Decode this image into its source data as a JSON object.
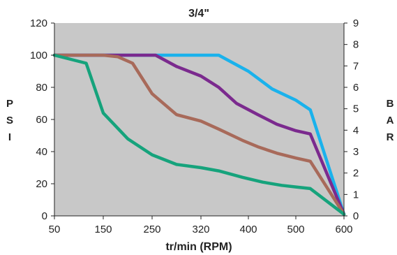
{
  "chart_data": {
    "type": "line",
    "title": "3/4\"",
    "xlabel": "tr/min (RPM)",
    "ylabel_left": "PSI",
    "ylabel_right": "BAR",
    "x_ticks": [
      "50",
      "150",
      "250",
      "320",
      "400",
      "500",
      "600"
    ],
    "y_left_ticks": [
      "0",
      "20",
      "40",
      "60",
      "80",
      "100",
      "120"
    ],
    "y_right_ticks": [
      "0",
      "1",
      "2",
      "3",
      "4",
      "5",
      "6",
      "7",
      "8",
      "9"
    ],
    "ylim_left": [
      0,
      120
    ],
    "ylim_right": [
      0,
      9
    ],
    "grid": false,
    "plot_background": "#c8c8c8",
    "series": [
      {
        "color": "#1ab2ec",
        "points": [
          [
            50,
            100
          ],
          [
            100,
            100
          ],
          [
            150,
            100
          ],
          [
            200,
            100
          ],
          [
            250,
            100
          ],
          [
            300,
            100
          ],
          [
            350,
            100
          ],
          [
            400,
            90
          ],
          [
            450,
            79
          ],
          [
            500,
            72
          ],
          [
            530,
            66
          ],
          [
            600,
            1
          ]
        ]
      },
      {
        "color": "#7b2a8e",
        "points": [
          [
            50,
            100
          ],
          [
            150,
            100
          ],
          [
            200,
            100
          ],
          [
            255,
            100
          ],
          [
            285,
            93
          ],
          [
            320,
            87
          ],
          [
            350,
            80
          ],
          [
            380,
            70
          ],
          [
            420,
            63
          ],
          [
            460,
            57
          ],
          [
            500,
            53
          ],
          [
            530,
            51
          ],
          [
            600,
            1
          ]
        ]
      },
      {
        "color": "#a86a5a",
        "points": [
          [
            50,
            100
          ],
          [
            150,
            100
          ],
          [
            180,
            99
          ],
          [
            210,
            95
          ],
          [
            250,
            76
          ],
          [
            285,
            63
          ],
          [
            320,
            59
          ],
          [
            350,
            54
          ],
          [
            390,
            47
          ],
          [
            420,
            43
          ],
          [
            460,
            39
          ],
          [
            500,
            36
          ],
          [
            530,
            34
          ],
          [
            600,
            1
          ]
        ]
      },
      {
        "color": "#16a37c",
        "points": [
          [
            50,
            100
          ],
          [
            115,
            95
          ],
          [
            150,
            64
          ],
          [
            200,
            48
          ],
          [
            250,
            38
          ],
          [
            285,
            32
          ],
          [
            320,
            30
          ],
          [
            350,
            28
          ],
          [
            390,
            24
          ],
          [
            430,
            21
          ],
          [
            470,
            19
          ],
          [
            500,
            18
          ],
          [
            530,
            17
          ],
          [
            600,
            1
          ]
        ]
      }
    ]
  }
}
